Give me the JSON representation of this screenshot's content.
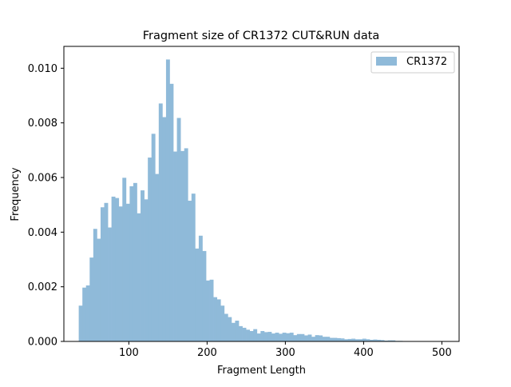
{
  "chart_data": {
    "type": "bar",
    "title": "Fragment size of CR1372 CUT&RUN data",
    "xlabel": "Fragment Length",
    "ylabel": "Frequency",
    "xlim": [
      17,
      522
    ],
    "ylim": [
      0,
      0.0108
    ],
    "xticks": [
      {
        "value": 100,
        "label": "100"
      },
      {
        "value": 200,
        "label": "200"
      },
      {
        "value": 300,
        "label": "300"
      },
      {
        "value": 400,
        "label": "400"
      },
      {
        "value": 500,
        "label": "500"
      }
    ],
    "yticks": [
      {
        "value": 0.0,
        "label": "0.000"
      },
      {
        "value": 0.002,
        "label": "0.002"
      },
      {
        "value": 0.004,
        "label": "0.004"
      },
      {
        "value": 0.006,
        "label": "0.006"
      },
      {
        "value": 0.008,
        "label": "0.008"
      },
      {
        "value": 0.01,
        "label": "0.010"
      }
    ],
    "legend_position": "top-right",
    "bar_color": "#8fbad9",
    "bin_edges": [
      36,
      40.65,
      45.29,
      49.94,
      54.58,
      59.23,
      63.88,
      68.52,
      73.17,
      77.82,
      82.46,
      87.11,
      91.75,
      96.4,
      101.05,
      105.69,
      110.34,
      114.98,
      119.63,
      124.28,
      128.92,
      133.57,
      138.22,
      142.86,
      147.51,
      152.15,
      156.8,
      161.45,
      166.09,
      170.74,
      175.38,
      180.03,
      184.68,
      189.32,
      193.97,
      198.62,
      203.26,
      207.91,
      212.55,
      217.2,
      221.85,
      226.49,
      231.14,
      235.78,
      240.43,
      245.08,
      249.72,
      254.37,
      259.02,
      263.66,
      268.31,
      272.95,
      277.6,
      282.25,
      286.89,
      291.54,
      296.18,
      300.83,
      305.48,
      310.12,
      314.77,
      319.42,
      324.06,
      328.71,
      333.35,
      338,
      342.65,
      347.29,
      351.94,
      356.58,
      361.23,
      365.88,
      370.52,
      375.17,
      379.82,
      384.46,
      389.11,
      393.75,
      398.4,
      403.05,
      407.69,
      412.34,
      416.98,
      421.63,
      426.28,
      430.92,
      435.57,
      440.22,
      444.86,
      449.51,
      454.15,
      458.8,
      463.45,
      468.09,
      472.74,
      477.38,
      482.03,
      486.68,
      491.32,
      495.97,
      500.62
    ],
    "series": [
      {
        "name": "CR1372",
        "values": [
          0.00131,
          0.00197,
          0.00205,
          0.00307,
          0.00412,
          0.00376,
          0.00491,
          0.00507,
          0.00417,
          0.0053,
          0.00525,
          0.00494,
          0.00599,
          0.00504,
          0.00568,
          0.0058,
          0.00469,
          0.00553,
          0.0052,
          0.00673,
          0.0076,
          0.00613,
          0.00871,
          0.00821,
          0.01032,
          0.00943,
          0.00695,
          0.00818,
          0.00697,
          0.00707,
          0.00515,
          0.00541,
          0.0034,
          0.00387,
          0.00331,
          0.00223,
          0.00226,
          0.00162,
          0.00154,
          0.00131,
          0.00101,
          0.00089,
          0.00068,
          0.00076,
          0.00056,
          0.0005,
          0.00043,
          0.00038,
          0.00045,
          0.00029,
          0.00038,
          0.00034,
          0.00035,
          0.00029,
          0.00032,
          0.00028,
          0.00032,
          0.0003,
          0.00032,
          0.00023,
          0.00027,
          0.00027,
          0.00022,
          0.00025,
          0.00017,
          0.00023,
          0.00022,
          0.00017,
          0.00017,
          0.00013,
          0.00013,
          0.00012,
          0.00011,
          8e-05,
          9e-05,
          0.0001,
          8e-05,
          8e-05,
          0.0001,
          8e-05,
          6e-05,
          7e-05,
          6e-05,
          5e-05,
          3e-05,
          4e-05,
          4e-05,
          2e-05,
          2e-05,
          1e-05,
          1e-05,
          1e-05,
          1e-05,
          0,
          0,
          0,
          0,
          0,
          0,
          1e-05
        ]
      }
    ]
  }
}
